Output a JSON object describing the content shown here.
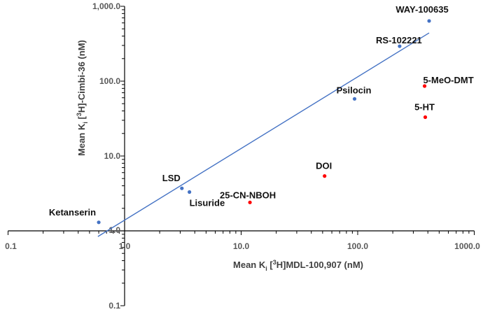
{
  "chart_data": {
    "type": "scatter",
    "x_scale": "log",
    "y_scale": "log",
    "xlim": [
      0.1,
      1000
    ],
    "ylim": [
      0.1,
      1000
    ],
    "grid": false,
    "xlabel": "Mean Ki [3H]MDL-100,907 (nM)",
    "xlabel_parts": {
      "pre": "Mean K",
      "sub": "i",
      "mid": " [",
      "sup": "3",
      "post": "H]MDL-100,907 (nM)"
    },
    "ylabel": "Mean Ki [3H]-Cimbi-36 (nM)",
    "ylabel_parts": {
      "pre": "Mean K",
      "sub": "i",
      "mid": " [",
      "sup": "3",
      "post": "H]-Cimbi-36 (nM)"
    },
    "x_ticks": [
      "0.1",
      "1.0",
      "10.0",
      "100.0",
      "1000.0"
    ],
    "y_ticks": [
      "0.1",
      "1.0",
      "10.0",
      "100.0",
      "1,000.0"
    ],
    "colors": {
      "blue": "#4472C4",
      "red": "#FF0000",
      "trendline": "#4472C4"
    },
    "points": [
      {
        "name": "Ketanserin",
        "x": 0.6,
        "y": 1.3,
        "color": "blue"
      },
      {
        "name": "LSD",
        "x": 3.1,
        "y": 3.7,
        "color": "blue"
      },
      {
        "name": "Lisuride",
        "x": 3.6,
        "y": 3.3,
        "color": "blue"
      },
      {
        "name": "25-CN-NBOH",
        "x": 11.9,
        "y": 2.4,
        "color": "red"
      },
      {
        "name": "DOI",
        "x": 52,
        "y": 5.4,
        "color": "red"
      },
      {
        "name": "Psilocin",
        "x": 94,
        "y": 58,
        "color": "blue"
      },
      {
        "name": "RS-102221",
        "x": 229,
        "y": 293,
        "color": "blue"
      },
      {
        "name": "WAY-100635",
        "x": 410,
        "y": 637,
        "color": "blue"
      },
      {
        "name": "5-MeO-DMT",
        "x": 375,
        "y": 86,
        "color": "red"
      },
      {
        "name": "5-HT",
        "x": 380,
        "y": 33,
        "color": "red"
      }
    ],
    "trendline": {
      "x": [
        0.59,
        410
      ],
      "y": [
        0.84,
        441
      ]
    }
  }
}
